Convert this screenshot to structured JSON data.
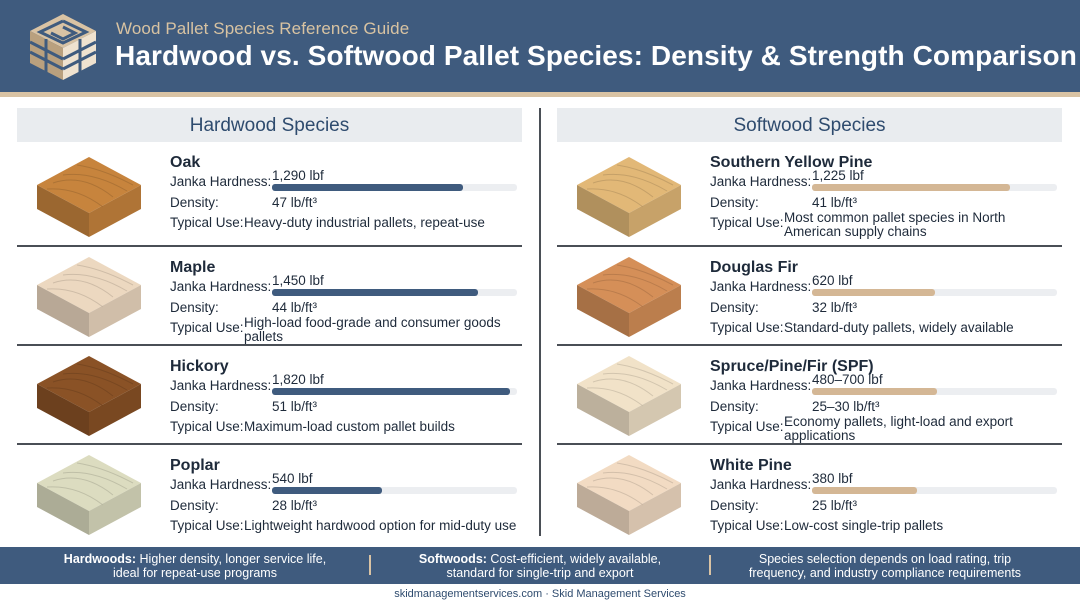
{
  "header": {
    "subtitle": "Wood Pallet Species Reference Guide",
    "title": "Hardwood vs. Softwood Pallet Species: Density & Strength Comparison"
  },
  "labels": {
    "janka": "Janka Hardness:",
    "density": "Density:",
    "use": "Typical Use:"
  },
  "hardwood": {
    "heading": "Hardwood Species",
    "species": [
      {
        "name": "Oak",
        "janka": "1,290 lbf",
        "janka_fraction": 0.78,
        "density": "47 lb/ft³",
        "use": "Heavy-duty industrial pallets, repeat-use",
        "wood_color": "#c7843d"
      },
      {
        "name": "Maple",
        "janka": "1,450 lbf",
        "janka_fraction": 0.84,
        "density": "44 lb/ft³",
        "use": "High-load food-grade and consumer goods pallets",
        "wood_color": "#ecd8c0"
      },
      {
        "name": "Hickory",
        "janka": "1,820 lbf",
        "janka_fraction": 0.97,
        "density": "51 lb/ft³",
        "use": "Maximum-load custom pallet builds",
        "wood_color": "#8a5226"
      },
      {
        "name": "Poplar",
        "janka": "540 lbf",
        "janka_fraction": 0.45,
        "density": "28 lb/ft³",
        "use": "Lightweight hardwood option for mid-duty use",
        "wood_color": "#dcdcc0"
      }
    ]
  },
  "softwood": {
    "heading": "Softwood Species",
    "species": [
      {
        "name": "Southern Yellow Pine",
        "janka": "1,225 lbf",
        "janka_fraction": 0.81,
        "density": "41 lb/ft³",
        "use": "Most common pallet species in North American supply chains",
        "wood_color": "#e2b877"
      },
      {
        "name": "Douglas Fir",
        "janka": "620 lbf",
        "janka_fraction": 0.5,
        "density": "32 lb/ft³",
        "use": "Standard-duty pallets, widely available",
        "wood_color": "#d58f58"
      },
      {
        "name": "Spruce/Pine/Fir (SPF)",
        "janka": "480–700 lbf",
        "janka_fraction": 0.51,
        "density": "25–30 lb/ft³",
        "use": "Economy pallets, light-load and export applications",
        "wood_color": "#f1e2c8"
      },
      {
        "name": "White Pine",
        "janka": "380 lbf",
        "janka_fraction": 0.43,
        "density": "25 lb/ft³",
        "use": "Low-cost single-trip pallets",
        "wood_color": "#f2dbc3"
      }
    ]
  },
  "footer": {
    "hard_bold": "Hardwoods:",
    "hard_text": "Higher density, longer service life, ideal for repeat-use programs",
    "soft_bold": "Softwoods:",
    "soft_text": "Cost-efficient, widely available, standard for single-trip and export",
    "selection_text": "Species selection depends on load rating, trip frequency, and industry compliance requirements",
    "credit": "skidmanagementservices.com · Skid Management Services"
  },
  "colors": {
    "header_bg": "#3f5b7e",
    "accent_tan": "#d9c3a4",
    "hardwood_bar": "#3f5b7e",
    "softwood_bar": "#d4b795"
  },
  "icons": {
    "logo": "pallet-stack-logo"
  }
}
